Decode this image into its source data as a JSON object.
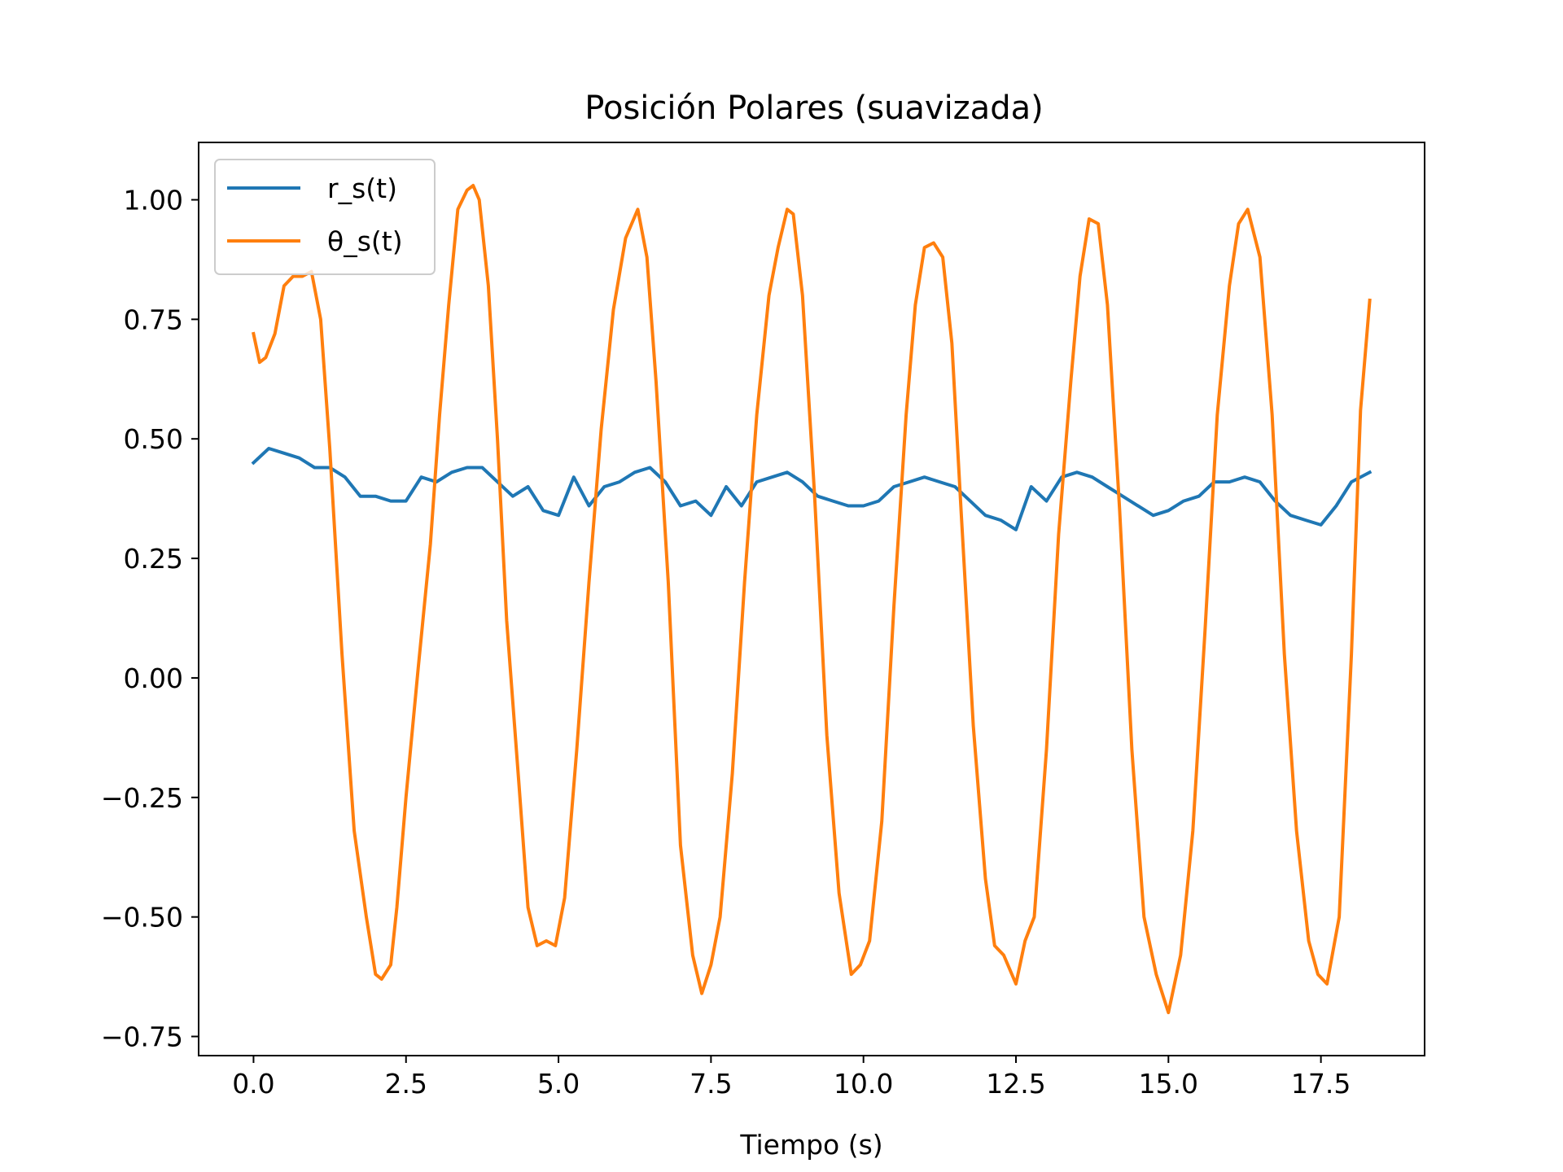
{
  "chart_data": {
    "type": "line",
    "title": "Posición Polares (suavizada)",
    "xlabel": "Tiempo (s)",
    "ylabel": "",
    "xlim": [
      -0.9,
      19.2
    ],
    "ylim": [
      -0.79,
      1.12
    ],
    "xticks": [
      0.0,
      2.5,
      5.0,
      7.5,
      10.0,
      12.5,
      15.0,
      17.5
    ],
    "xtick_labels": [
      "0.0",
      "2.5",
      "5.0",
      "7.5",
      "10.0",
      "12.5",
      "15.0",
      "17.5"
    ],
    "yticks": [
      1.0,
      0.75,
      0.5,
      0.25,
      0.0,
      -0.25,
      -0.5,
      -0.75
    ],
    "ytick_labels": [
      "1.00",
      "0.75",
      "0.50",
      "0.25",
      "0.00",
      "−0.25",
      "−0.50",
      "−0.75"
    ],
    "grid": false,
    "legend_position": "upper-left",
    "series": [
      {
        "name": "r_s(t)",
        "color": "#1f77b4",
        "x": [
          0.0,
          0.25,
          0.5,
          0.75,
          1.0,
          1.25,
          1.5,
          1.75,
          2.0,
          2.25,
          2.5,
          2.75,
          3.0,
          3.25,
          3.5,
          3.75,
          4.0,
          4.25,
          4.5,
          4.75,
          5.0,
          5.25,
          5.5,
          5.75,
          6.0,
          6.25,
          6.5,
          6.75,
          7.0,
          7.25,
          7.5,
          7.75,
          8.0,
          8.25,
          8.5,
          8.75,
          9.0,
          9.25,
          9.5,
          9.75,
          10.0,
          10.25,
          10.5,
          10.75,
          11.0,
          11.25,
          11.5,
          11.75,
          12.0,
          12.25,
          12.5,
          12.75,
          13.0,
          13.25,
          13.5,
          13.75,
          14.0,
          14.25,
          14.5,
          14.75,
          15.0,
          15.25,
          15.5,
          15.75,
          16.0,
          16.25,
          16.5,
          16.75,
          17.0,
          17.25,
          17.5,
          17.75,
          18.0,
          18.3
        ],
        "y": [
          0.45,
          0.48,
          0.47,
          0.46,
          0.44,
          0.44,
          0.42,
          0.38,
          0.38,
          0.37,
          0.37,
          0.42,
          0.41,
          0.43,
          0.44,
          0.44,
          0.41,
          0.38,
          0.4,
          0.35,
          0.34,
          0.42,
          0.36,
          0.4,
          0.41,
          0.43,
          0.44,
          0.41,
          0.36,
          0.37,
          0.34,
          0.4,
          0.36,
          0.41,
          0.42,
          0.43,
          0.41,
          0.38,
          0.37,
          0.36,
          0.36,
          0.37,
          0.4,
          0.41,
          0.42,
          0.41,
          0.4,
          0.37,
          0.34,
          0.33,
          0.31,
          0.4,
          0.37,
          0.42,
          0.43,
          0.42,
          0.4,
          0.38,
          0.36,
          0.34,
          0.35,
          0.37,
          0.38,
          0.41,
          0.41,
          0.42,
          0.41,
          0.37,
          0.34,
          0.33,
          0.32,
          0.36,
          0.41,
          0.43
        ]
      },
      {
        "name": "θ_s(t)",
        "color": "#ff7f0e",
        "x": [
          0.0,
          0.1,
          0.2,
          0.35,
          0.5,
          0.65,
          0.8,
          0.95,
          1.1,
          1.25,
          1.45,
          1.65,
          1.85,
          2.0,
          2.1,
          2.25,
          2.35,
          2.5,
          2.7,
          2.9,
          3.05,
          3.2,
          3.35,
          3.5,
          3.6,
          3.7,
          3.85,
          4.0,
          4.15,
          4.35,
          4.5,
          4.65,
          4.8,
          4.95,
          5.1,
          5.3,
          5.5,
          5.7,
          5.9,
          6.1,
          6.3,
          6.45,
          6.6,
          6.8,
          7.0,
          7.2,
          7.35,
          7.5,
          7.65,
          7.85,
          8.05,
          8.25,
          8.45,
          8.6,
          8.75,
          8.85,
          9.0,
          9.2,
          9.4,
          9.6,
          9.8,
          9.95,
          10.1,
          10.3,
          10.5,
          10.7,
          10.85,
          11.0,
          11.15,
          11.3,
          11.45,
          11.6,
          11.8,
          12.0,
          12.15,
          12.3,
          12.5,
          12.65,
          12.8,
          13.0,
          13.2,
          13.4,
          13.55,
          13.7,
          13.85,
          14.0,
          14.2,
          14.4,
          14.6,
          14.8,
          15.0,
          15.2,
          15.4,
          15.6,
          15.8,
          16.0,
          16.15,
          16.3,
          16.5,
          16.7,
          16.9,
          17.1,
          17.3,
          17.45,
          17.6,
          17.8,
          18.0,
          18.15,
          18.3
        ],
        "y": [
          0.72,
          0.66,
          0.67,
          0.72,
          0.82,
          0.84,
          0.84,
          0.85,
          0.75,
          0.48,
          0.05,
          -0.32,
          -0.5,
          -0.62,
          -0.63,
          -0.6,
          -0.48,
          -0.25,
          0.02,
          0.28,
          0.55,
          0.78,
          0.98,
          1.02,
          1.03,
          1.0,
          0.82,
          0.5,
          0.12,
          -0.22,
          -0.48,
          -0.56,
          -0.55,
          -0.56,
          -0.46,
          -0.15,
          0.2,
          0.52,
          0.77,
          0.92,
          0.98,
          0.88,
          0.62,
          0.2,
          -0.35,
          -0.58,
          -0.66,
          -0.6,
          -0.5,
          -0.2,
          0.2,
          0.55,
          0.8,
          0.9,
          0.98,
          0.97,
          0.8,
          0.38,
          -0.12,
          -0.45,
          -0.62,
          -0.6,
          -0.55,
          -0.3,
          0.15,
          0.55,
          0.78,
          0.9,
          0.91,
          0.88,
          0.7,
          0.35,
          -0.1,
          -0.42,
          -0.56,
          -0.58,
          -0.64,
          -0.55,
          -0.5,
          -0.15,
          0.3,
          0.62,
          0.84,
          0.96,
          0.95,
          0.78,
          0.35,
          -0.15,
          -0.5,
          -0.62,
          -0.7,
          -0.58,
          -0.32,
          0.1,
          0.55,
          0.82,
          0.95,
          0.98,
          0.88,
          0.55,
          0.05,
          -0.32,
          -0.55,
          -0.62,
          -0.64,
          -0.5,
          0.05,
          0.56,
          0.79
        ]
      }
    ]
  }
}
